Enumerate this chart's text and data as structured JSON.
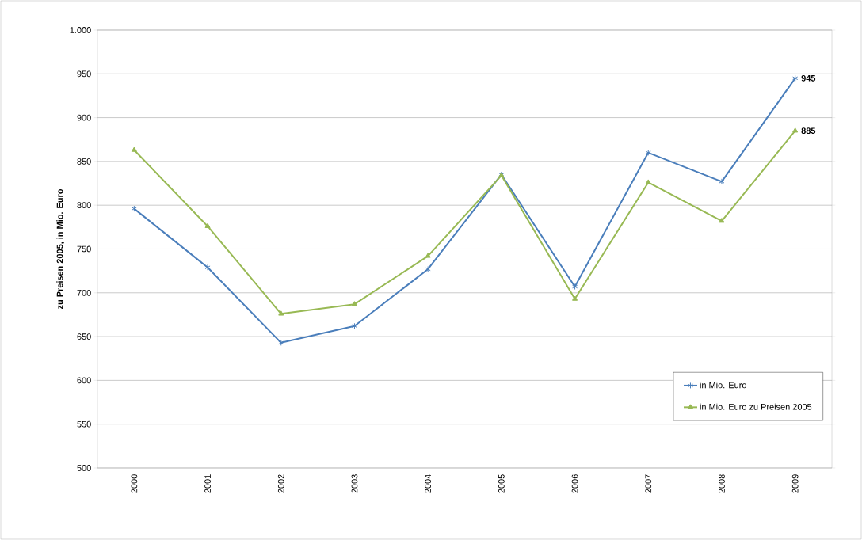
{
  "chart_data": {
    "type": "line",
    "ylabel": "**zu Preisen 2005, in Mio. Euro**",
    "categories": [
      "2000",
      "2001",
      "2002",
      "2003",
      "2004",
      "2005",
      "2006",
      "2007",
      "2008",
      "2009"
    ],
    "series": [
      {
        "name": "in Mio. Euro",
        "color": "#4a7ebb",
        "marker": "cross",
        "values": [
          796,
          729,
          643,
          662,
          727,
          835,
          707,
          860,
          827,
          945
        ],
        "value_labels": [
          null,
          null,
          null,
          null,
          null,
          null,
          null,
          null,
          null,
          "945"
        ]
      },
      {
        "name": "in Mio. Euro zu Preisen 2005",
        "color": "#98b954",
        "marker": "triangle",
        "values": [
          863,
          776,
          676,
          687,
          742,
          834,
          693,
          826,
          782,
          885
        ],
        "value_labels": [
          null,
          null,
          null,
          null,
          null,
          null,
          null,
          null,
          null,
          "885"
        ]
      }
    ],
    "ylim": [
      500,
      1000
    ],
    "yticks": [
      500,
      550,
      600,
      650,
      700,
      750,
      800,
      850,
      900,
      950,
      {
        "value": 1000,
        "label": "1.000"
      }
    ],
    "grid": "y",
    "legend": "bottom right",
    "line_style": "solid"
  }
}
